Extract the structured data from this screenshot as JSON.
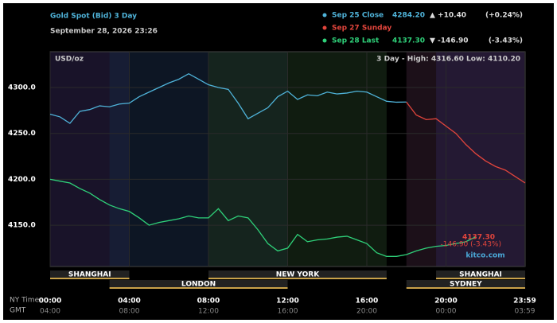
{
  "chart_data": {
    "type": "line",
    "title": "Gold Spot (Bid) 3 Day",
    "subtitle": "September 28, 2026 23:26",
    "unit_label": "USD/oz",
    "range_label": "3 Day - High: 4316.60  Low: 4110.20",
    "watermark": "kitco.com",
    "last_price": "4137.30",
    "last_change": "-146.90 (-3.43%)",
    "x_axis_label": "NY Time",
    "x2_axis_label": "GMT",
    "x": [
      0,
      0.5,
      1,
      1.5,
      2,
      2.5,
      3,
      3.5,
      4,
      4.5,
      5,
      5.5,
      6,
      6.5,
      7,
      7.5,
      8,
      8.5,
      9,
      9.5,
      10,
      10.5,
      11,
      11.5,
      12,
      12.5,
      13,
      13.5,
      14,
      14.5,
      15,
      15.5,
      16,
      16.5,
      17,
      17.5,
      18,
      18.5,
      19,
      19.5,
      20,
      20.5,
      21,
      21.5,
      22,
      22.5,
      23,
      23.5,
      24
    ],
    "series": [
      {
        "name": "Sep 25 Close",
        "color": "#4fb3d9",
        "close": "4284.20",
        "change": "▲ +10.40",
        "pct": "(+0.24%)",
        "values": [
          4271,
          4268,
          4261,
          4274,
          4276,
          4280,
          4279,
          4282,
          4283,
          4290,
          4295,
          4300,
          4305,
          4309,
          4315,
          4309,
          4303,
          4300,
          4298,
          4283,
          4266,
          4272,
          4278,
          4290,
          4296,
          4287,
          4292,
          4291,
          4295,
          4293,
          4294,
          4296,
          4295,
          4290,
          4285,
          4284,
          4284.2,
          null,
          null,
          null,
          null,
          null,
          null,
          null,
          null,
          null,
          null,
          null,
          null
        ]
      },
      {
        "name": "Sep 27 Sunday",
        "color": "#e2453c",
        "values": [
          null,
          null,
          null,
          null,
          null,
          null,
          null,
          null,
          null,
          null,
          null,
          null,
          null,
          null,
          null,
          null,
          null,
          null,
          null,
          null,
          null,
          null,
          null,
          null,
          null,
          null,
          null,
          null,
          null,
          null,
          null,
          null,
          null,
          null,
          null,
          null,
          4284.2,
          4270,
          4265,
          4266,
          4258,
          4250,
          4238,
          4228,
          4220,
          4214,
          4210,
          4203,
          4196
        ]
      },
      {
        "name": "Sep 28 Last",
        "color": "#2fd27a",
        "close": "4137.30",
        "change": "▼ -146.90",
        "pct": "(-3.43%)",
        "values": [
          4200,
          4198,
          4196,
          4190,
          4185,
          4178,
          4172,
          4168,
          4165,
          4158,
          4150,
          4153,
          4155,
          4157,
          4160,
          4158,
          4158,
          4168,
          4155,
          4160,
          4158,
          4145,
          4130,
          4122,
          4125,
          4140,
          4132,
          4134,
          4135,
          4137,
          4138,
          4134,
          4130,
          4120,
          4116,
          4116,
          4118,
          4122,
          4125,
          4127,
          4128,
          4130,
          4132,
          4137.3,
          null,
          null,
          null,
          null,
          null
        ]
      }
    ],
    "xlim": [
      0,
      24
    ],
    "xticks": [
      {
        "value": 0,
        "label": "00:00"
      },
      {
        "value": 4,
        "label": "04:00"
      },
      {
        "value": 8,
        "label": "08:00"
      },
      {
        "value": 12,
        "label": "12:00"
      },
      {
        "value": 16,
        "label": "16:00"
      },
      {
        "value": 20,
        "label": "20:00"
      },
      {
        "value": 23.98,
        "label": "23:59"
      }
    ],
    "x2ticks": [
      {
        "value": 0,
        "label": "04:00"
      },
      {
        "value": 4,
        "label": "08:00"
      },
      {
        "value": 8,
        "label": "12:00"
      },
      {
        "value": 12,
        "label": "16:00"
      },
      {
        "value": 16,
        "label": "20:00"
      },
      {
        "value": 20,
        "label": "00:00"
      },
      {
        "value": 23.98,
        "label": "03:59"
      }
    ],
    "ylim": [
      4105,
      4339
    ],
    "yticks": [
      {
        "value": 4150,
        "label": "4150.0"
      },
      {
        "value": 4200,
        "label": "4200.0"
      },
      {
        "value": 4250,
        "label": "4250.0"
      },
      {
        "value": 4300,
        "label": "4300.0"
      }
    ],
    "grid": true,
    "sessions": [
      {
        "label": "SHANGHAI",
        "start": 0,
        "end": 4,
        "row": 0,
        "color": "#2a1f44"
      },
      {
        "label": "LONDON",
        "start": 3,
        "end": 12,
        "row": 1,
        "color": "#16243c"
      },
      {
        "label": "NEW YORK",
        "start": 8,
        "end": 17,
        "row": 0,
        "color": "#1a2e1a"
      },
      {
        "label": "SYDNEY",
        "start": 18,
        "end": 24,
        "row": 1,
        "color": "#2e1a2a"
      },
      {
        "label": "SHANGHAI",
        "start": 19.5,
        "end": 24,
        "row": 0,
        "color": "#2a1f44"
      }
    ]
  }
}
